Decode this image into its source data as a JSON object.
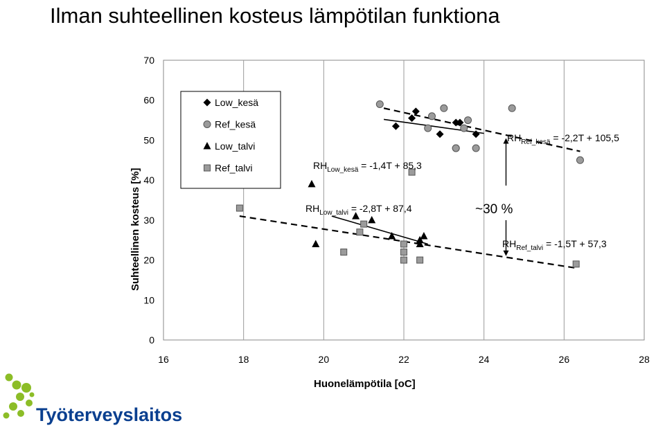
{
  "slide": {
    "title": "Ilman suhteellinen kosteus lämpötilan funktiona",
    "logo_text": "Työterveyslaitos"
  },
  "chart_data": {
    "type": "scatter",
    "xlabel": "Huonelämpötila [oC]",
    "ylabel": "Suhteellinen kosteus [%]",
    "xlim": [
      16,
      28
    ],
    "ylim": [
      0,
      70
    ],
    "xticks": [
      16,
      18,
      20,
      22,
      24,
      26,
      28
    ],
    "yticks": [
      0,
      10,
      20,
      30,
      40,
      50,
      60,
      70
    ],
    "grid": "vertical",
    "legend_position": "top-left",
    "series": [
      {
        "name": "Low_kesä",
        "marker": "diamond",
        "color": "#000000",
        "x": [
          21.8,
          22.2,
          22.3,
          22.9,
          23.3,
          23.4,
          23.8
        ],
        "y": [
          53.5,
          55.5,
          57.2,
          51.5,
          54.4,
          54.4,
          51.5
        ]
      },
      {
        "name": "Ref_kesä",
        "marker": "circle",
        "color": "#9b9b9b",
        "x": [
          21.4,
          22.6,
          22.7,
          23.0,
          23.3,
          23.5,
          23.6,
          23.3,
          23.8,
          24.7,
          26.4
        ],
        "y": [
          59.0,
          53.0,
          56.0,
          58.0,
          48.0,
          53.0,
          55.0,
          48.0,
          48.0,
          58.0,
          45.0
        ]
      },
      {
        "name": "Low_talvi",
        "marker": "triangle",
        "color": "#000000",
        "x": [
          19.7,
          19.8,
          20.8,
          21.2,
          21.7,
          22.4,
          22.4,
          22.5
        ],
        "y": [
          39.0,
          24.0,
          31.0,
          30.0,
          26.0,
          24.0,
          25.0,
          26.0
        ]
      },
      {
        "name": "Ref_talvi",
        "marker": "square",
        "color": "#9b9b9b",
        "x": [
          17.9,
          20.5,
          20.9,
          21.0,
          22.0,
          22.0,
          22.0,
          22.2,
          22.4,
          26.3
        ],
        "y": [
          33.0,
          22.0,
          27.0,
          29.0,
          24.0,
          22.0,
          20.0,
          42.0,
          20.0,
          19.0
        ]
      }
    ],
    "trendlines": [
      {
        "series": "Low_kesä",
        "style": "solid",
        "x": [
          21.5,
          24.0
        ],
        "y": [
          55.2,
          51.7
        ],
        "label_main": "RH",
        "label_sub": "Low_kesä",
        "label_eq": " = -1,4T + 85,3"
      },
      {
        "series": "Ref_kesä",
        "style": "dashed",
        "x": [
          21.5,
          26.4
        ],
        "y": [
          58.0,
          47.2
        ],
        "label_main": "RH",
        "label_sub": "Ref_kesä",
        "label_eq": " = -2,2T + 105,5"
      },
      {
        "series": "Low_talvi",
        "style": "solid",
        "x": [
          20.2,
          22.6
        ],
        "y": [
          31.0,
          24.0
        ],
        "label_main": "RH",
        "label_sub": "Low_talvi",
        "label_eq": " = -2,8T + 87,4"
      },
      {
        "series": "Ref_talvi",
        "style": "dashed",
        "x": [
          17.9,
          26.3
        ],
        "y": [
          31.0,
          18.0
        ],
        "label_main": "RH",
        "label_sub": "Ref_talvi",
        "label_eq": " = -1,5T + 57,3"
      }
    ],
    "annotation": {
      "text": "~30 %",
      "x": 24.55,
      "y_top": 50.5,
      "y_bottom": 21.0
    }
  }
}
